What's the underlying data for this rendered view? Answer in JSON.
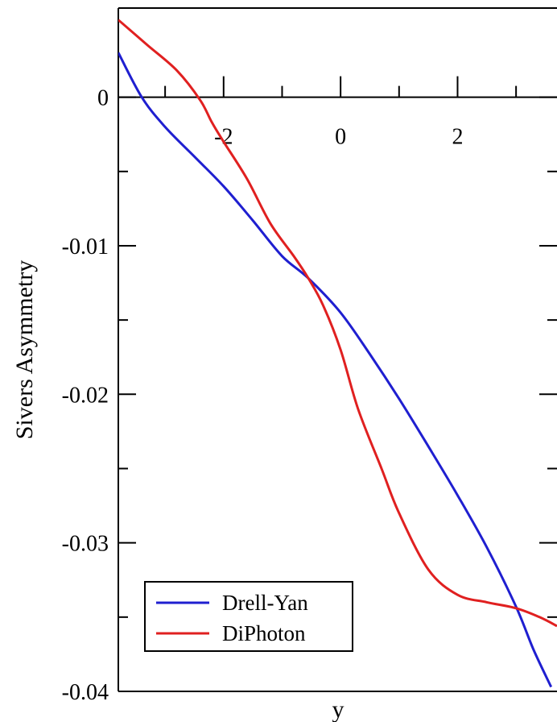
{
  "chart_data": {
    "type": "line",
    "title": "",
    "xlabel": "y",
    "ylabel": "Sivers Asymmetry",
    "xlim": [
      -3.8,
      3.7
    ],
    "ylim": [
      -0.04,
      0.006
    ],
    "x_ticks": [
      -2,
      0,
      2
    ],
    "x_tick_labels": [
      "-2",
      "0",
      "2"
    ],
    "y_ticks": [
      0,
      -0.01,
      -0.02,
      -0.03,
      -0.04
    ],
    "y_tick_labels": [
      "0",
      "-0.01",
      "-0.02",
      "-0.03",
      "-0.04"
    ],
    "grid": false,
    "legend_position": "bottom-left",
    "series": [
      {
        "name": "Drell-Yan",
        "color": "#1f1fd0",
        "x": [
          -3.8,
          -3.4,
          -3.0,
          -2.5,
          -2.0,
          -1.5,
          -1.0,
          -0.55,
          0.0,
          0.5,
          1.0,
          1.5,
          2.0,
          2.5,
          3.0,
          3.3,
          3.6
        ],
        "y": [
          0.003,
          0.0,
          -0.002,
          -0.004,
          -0.006,
          -0.0083,
          -0.0107,
          -0.0122,
          -0.0145,
          -0.0173,
          -0.0203,
          -0.0235,
          -0.0268,
          -0.0303,
          -0.0343,
          -0.0372,
          -0.0397
        ]
      },
      {
        "name": "DiPhoton",
        "color": "#e02020",
        "x": [
          -3.8,
          -3.3,
          -2.8,
          -2.4,
          -2.2,
          -2.0,
          -1.6,
          -1.2,
          -0.8,
          -0.55,
          -0.3,
          0.0,
          0.3,
          0.7,
          1.0,
          1.5,
          2.0,
          2.5,
          3.0,
          3.4,
          3.7
        ],
        "y": [
          0.0052,
          0.0035,
          0.0018,
          -0.0002,
          -0.0017,
          -0.003,
          -0.0055,
          -0.0085,
          -0.0107,
          -0.0122,
          -0.014,
          -0.017,
          -0.021,
          -0.025,
          -0.028,
          -0.0318,
          -0.0335,
          -0.034,
          -0.0344,
          -0.035,
          -0.0356
        ]
      }
    ]
  }
}
